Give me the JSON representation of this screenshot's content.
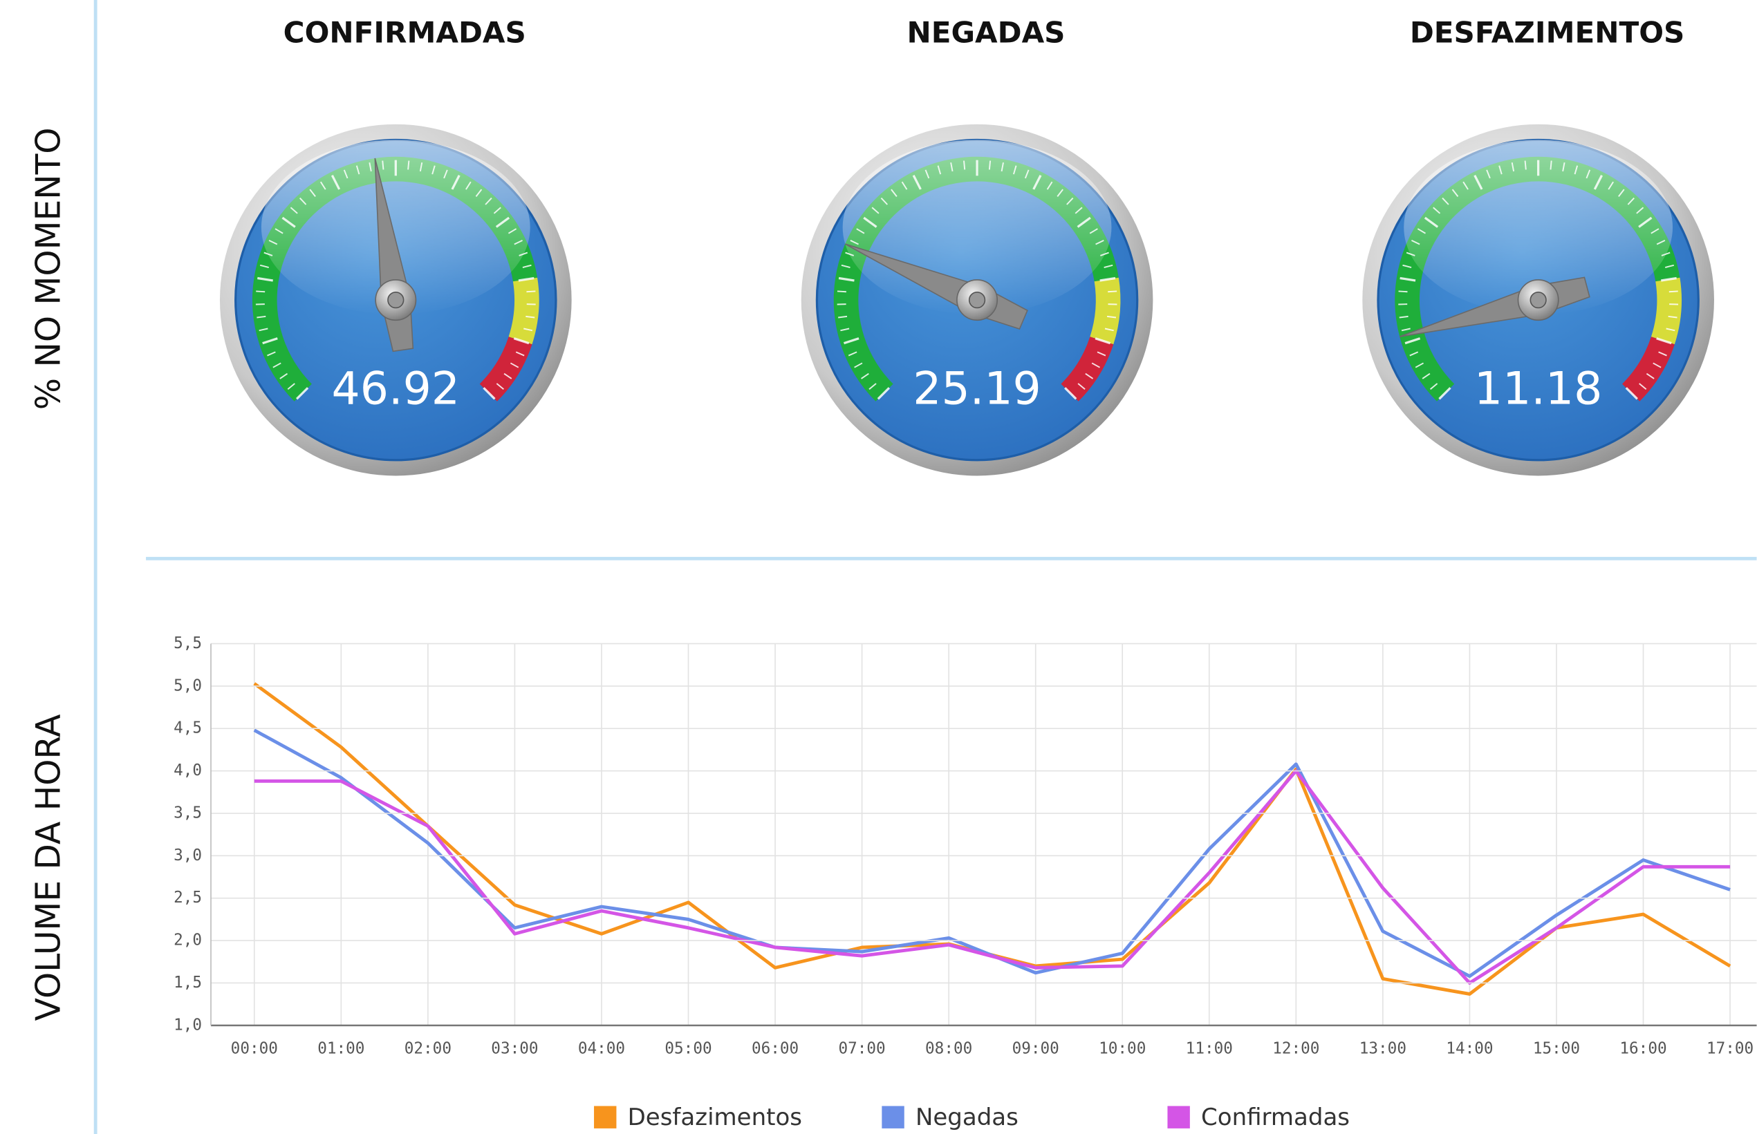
{
  "sections": [
    "% NO MOMENTO",
    "VOLUME DA HORA"
  ],
  "chart_data": [
    {
      "type": "gauge",
      "title": "CONFIRMADAS",
      "value": 46.92,
      "ylim": [
        0,
        100
      ],
      "bands": [
        {
          "from": 0,
          "to": 80,
          "color": "#1fae3a"
        },
        {
          "from": 80,
          "to": 90,
          "color": "#d7dc3a"
        },
        {
          "from": 90,
          "to": 100,
          "color": "#d0243a"
        }
      ]
    },
    {
      "type": "gauge",
      "title": "NEGADAS",
      "value": 25.19,
      "ylim": [
        0,
        100
      ],
      "bands": [
        {
          "from": 0,
          "to": 80,
          "color": "#1fae3a"
        },
        {
          "from": 80,
          "to": 90,
          "color": "#d7dc3a"
        },
        {
          "from": 90,
          "to": 100,
          "color": "#d0243a"
        }
      ]
    },
    {
      "type": "gauge",
      "title": "DESFAZIMENTOS",
      "value": 11.18,
      "ylim": [
        0,
        100
      ],
      "bands": [
        {
          "from": 0,
          "to": 80,
          "color": "#1fae3a"
        },
        {
          "from": 80,
          "to": 90,
          "color": "#d7dc3a"
        },
        {
          "from": 90,
          "to": 100,
          "color": "#d0243a"
        }
      ]
    },
    {
      "type": "line",
      "categories": [
        "00:00",
        "01:00",
        "02:00",
        "03:00",
        "04:00",
        "05:00",
        "06:00",
        "07:00",
        "08:00",
        "09:00",
        "10:00",
        "11:00",
        "12:00",
        "13:00",
        "14:00",
        "15:00",
        "16:00",
        "17:00"
      ],
      "ylim": [
        1,
        5.5
      ],
      "yticks": [
        {
          "value": 1,
          "label": "1,0"
        },
        {
          "value": 1.5,
          "label": "1,5"
        },
        {
          "value": 2,
          "label": "2,0"
        },
        {
          "value": 2.5,
          "label": "2,5"
        },
        {
          "value": 3,
          "label": "3,0"
        },
        {
          "value": 3.5,
          "label": "3,5"
        },
        {
          "value": 4,
          "label": "4,0"
        },
        {
          "value": 4.5,
          "label": "4,5"
        },
        {
          "value": 5,
          "label": "5,0"
        },
        {
          "value": 5.5,
          "label": "5,5"
        }
      ],
      "grid": true,
      "legend": "bottom",
      "series": [
        {
          "name": "Desfazimentos",
          "color": "#f7941d",
          "values": [
            5.03,
            4.28,
            3.35,
            2.42,
            2.08,
            2.45,
            1.68,
            1.92,
            1.96,
            1.7,
            1.78,
            2.68,
            4.02,
            1.55,
            1.37,
            2.15,
            2.31,
            1.7
          ]
        },
        {
          "name": "Negadas",
          "color": "#6b8fe8",
          "values": [
            4.48,
            3.92,
            3.15,
            2.15,
            2.4,
            2.25,
            1.92,
            1.87,
            2.03,
            1.62,
            1.85,
            3.08,
            4.08,
            2.11,
            1.58,
            2.3,
            2.95,
            2.6
          ]
        },
        {
          "name": "Confirmadas",
          "color": "#d455e6",
          "values": [
            3.88,
            3.88,
            3.35,
            2.08,
            2.35,
            2.15,
            1.92,
            1.82,
            1.95,
            1.68,
            1.7,
            2.8,
            4.0,
            2.62,
            1.5,
            2.15,
            2.87,
            2.87
          ]
        }
      ]
    }
  ]
}
